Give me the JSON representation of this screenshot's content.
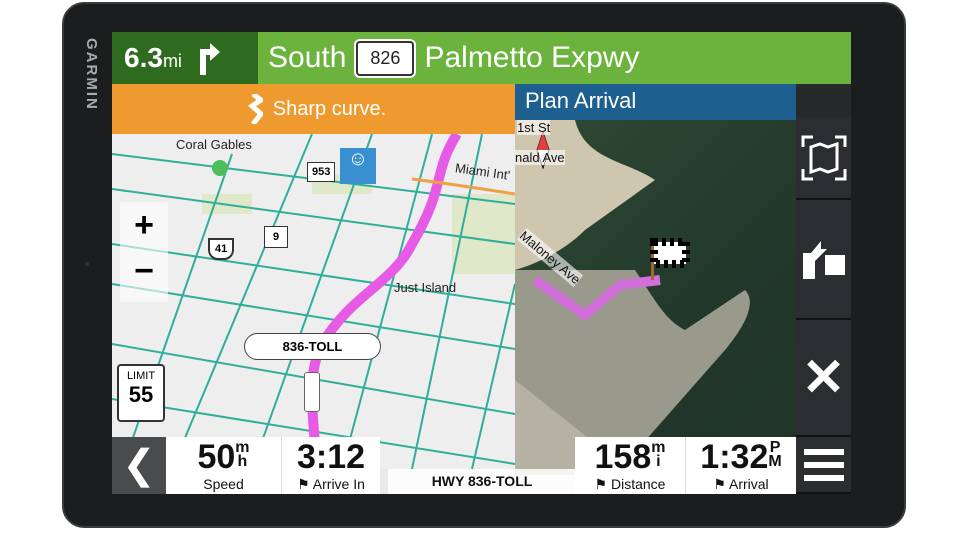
{
  "device": {
    "brand": "GARMIN"
  },
  "nav": {
    "distance_value": "6.3",
    "distance_unit": "mi",
    "direction": "South",
    "route_shield": "826",
    "street": "Palmetto Expwy",
    "turn_icon": "turn-right-arrow"
  },
  "alert": {
    "text": "Sharp curve.",
    "icon": "sharp-curve-icon"
  },
  "arrival_panel": {
    "title": "Plan Arrival",
    "labels": [
      "1st St",
      "nald Ave",
      "Maloney Ave"
    ]
  },
  "map": {
    "places": [
      "Coral Gables",
      "Miami Int'",
      "Just Island"
    ],
    "shields": [
      "953",
      "41",
      "9"
    ],
    "road_label": "836-TOLL",
    "speed_limit_label": "LIMIT",
    "speed_limit_value": "55",
    "route_color": "#e65ae6"
  },
  "right_buttons": [
    {
      "icon": "map-view-icon"
    },
    {
      "icon": "route-icon"
    },
    {
      "icon": "close-icon"
    },
    {
      "icon": "menu-icon"
    }
  ],
  "bottom": {
    "speed": {
      "value": "50",
      "unit_top": "m",
      "unit_bottom": "h",
      "label": "Speed"
    },
    "arrive_in": {
      "value": "3:12",
      "label": "Arrive In"
    },
    "road": "HWY 836-TOLL",
    "distance": {
      "value": "158",
      "unit_top": "m",
      "unit_bottom": "i",
      "label": "Distance"
    },
    "arrival": {
      "value": "1:32",
      "unit_top": "P",
      "unit_bottom": "M",
      "label": "Arrival"
    }
  }
}
